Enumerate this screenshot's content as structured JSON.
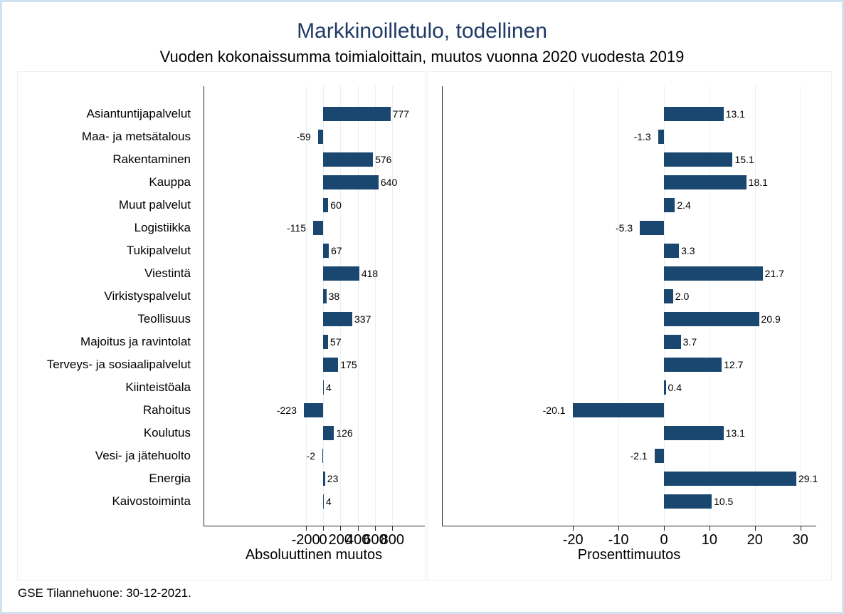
{
  "title": "Markkinoilletulo, todellinen",
  "subtitle": "Vuoden kokonaissumma toimialoittain, muutos vuonna 2020 vuodesta 2019",
  "footer": "GSE Tilannehuone: 30-12-2021.",
  "colors": {
    "bar": "#1a476f",
    "title_text": "#203a66",
    "grid": "#e7f0f6",
    "axis": "#2b2b2b",
    "panel_border": "#e9f1f5",
    "figure_border": "#cfe2ef",
    "background": "#ffffff"
  },
  "chart_data": [
    {
      "type": "bar",
      "orientation": "horizontal",
      "xlabel": "Absoluuttinen muutos",
      "ylabel": "",
      "grid": true,
      "legend": false,
      "xticks": [
        -200,
        0,
        200,
        400,
        600,
        800
      ],
      "xtick_labels": [
        "-200",
        "0",
        "200",
        "400",
        "600",
        "800"
      ],
      "xlim": [
        -200,
        800
      ],
      "categories": [
        "Asiantuntijapalvelut",
        "Maa- ja metsätalous",
        "Rakentaminen",
        "Kauppa",
        "Muut palvelut",
        "Logistiikka",
        "Tukipalvelut",
        "Viestintä",
        "Virkistyspalvelut",
        "Teollisuus",
        "Majoitus ja ravintolat",
        "Terveys- ja sosiaalipalvelut",
        "Kiinteistöala",
        "Rahoitus",
        "Koulutus",
        "Vesi- ja jätehuolto",
        "Energia",
        "Kaivostoiminta"
      ],
      "values": [
        777,
        -59,
        576,
        640,
        60,
        -115,
        67,
        418,
        38,
        337,
        57,
        175,
        4,
        -223,
        126,
        -2,
        23,
        4
      ],
      "labels": [
        "777",
        "-59",
        "576",
        "640",
        "60",
        "-115",
        "67",
        "418",
        "38",
        "337",
        "57",
        "175",
        "4",
        "-223",
        "126",
        "-2",
        "23",
        "4"
      ]
    },
    {
      "type": "bar",
      "orientation": "horizontal",
      "xlabel": "Prosenttimuutos",
      "ylabel": "",
      "grid": true,
      "legend": false,
      "xticks": [
        -20,
        -10,
        0,
        10,
        20,
        30
      ],
      "xtick_labels": [
        "-20",
        "-10",
        "0",
        "10",
        "20",
        "30"
      ],
      "xlim": [
        -20,
        30
      ],
      "categories": [
        "Asiantuntijapalvelut",
        "Maa- ja metsätalous",
        "Rakentaminen",
        "Kauppa",
        "Muut palvelut",
        "Logistiikka",
        "Tukipalvelut",
        "Viestintä",
        "Virkistyspalvelut",
        "Teollisuus",
        "Majoitus ja ravintolat",
        "Terveys- ja sosiaalipalvelut",
        "Kiinteistöala",
        "Rahoitus",
        "Koulutus",
        "Vesi- ja jätehuolto",
        "Energia",
        "Kaivostoiminta"
      ],
      "values": [
        13.1,
        -1.3,
        15.1,
        18.1,
        2.4,
        -5.3,
        3.3,
        21.7,
        2.0,
        20.9,
        3.7,
        12.7,
        0.4,
        -20.1,
        13.1,
        -2.1,
        29.1,
        10.5
      ],
      "labels": [
        "13.1",
        "-1.3",
        "15.1",
        "18.1",
        "2.4",
        "-5.3",
        "3.3",
        "21.7",
        "2.0",
        "20.9",
        "3.7",
        "12.7",
        "0.4",
        "-20.1",
        "13.1",
        "-2.1",
        "29.1",
        "10.5"
      ]
    }
  ]
}
